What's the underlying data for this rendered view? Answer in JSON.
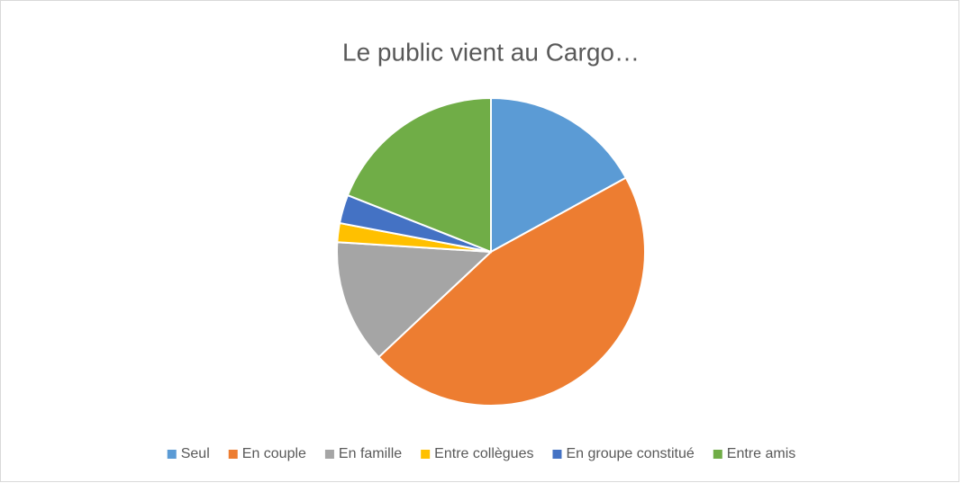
{
  "chart_data": {
    "type": "pie",
    "title": "Le public vient au Cargo…",
    "categories": [
      "Seul",
      "En couple",
      "En famille",
      "Entre collègues",
      "En groupe constitué",
      "Entre amis"
    ],
    "values": [
      17,
      46,
      13,
      2,
      3,
      19
    ],
    "colors": [
      "#5b9bd5",
      "#ed7d31",
      "#a5a5a5",
      "#ffc000",
      "#4472c4",
      "#70ad47"
    ],
    "legend": "bottom"
  }
}
